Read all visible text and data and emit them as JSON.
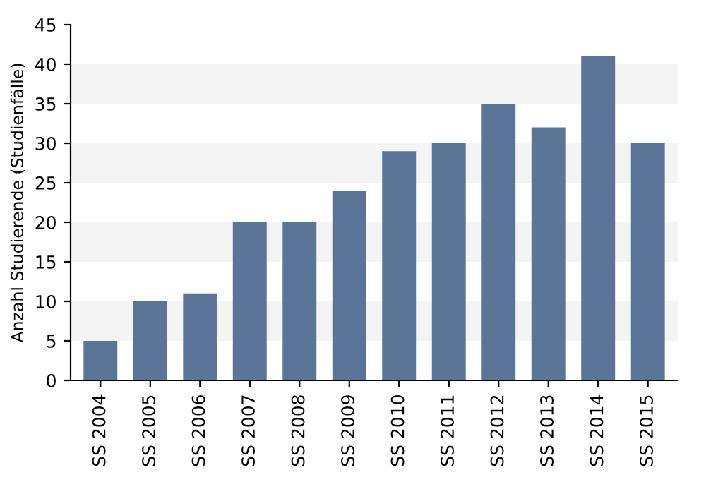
{
  "chart_data": {
    "type": "bar",
    "ylabel": "Anzahl Studierende (Studienfälle)",
    "categories": [
      "SS 2004",
      "SS 2005",
      "SS 2006",
      "SS 2007",
      "SS 2008",
      "SS 2009",
      "SS 2010",
      "SS 2011",
      "SS 2012",
      "SS 2013",
      "SS 2014",
      "SS 2015"
    ],
    "values": [
      5,
      10,
      11,
      20,
      20,
      24,
      29,
      30,
      35,
      32,
      41,
      30
    ],
    "color": "#5a7598",
    "ylim": [
      0,
      45
    ],
    "yticks": [
      0,
      5,
      10,
      15,
      20,
      25,
      30,
      35,
      40,
      45
    ],
    "bands": [
      {
        "axis": "y",
        "from": 5,
        "to": 10,
        "color": "#f4f4f4"
      },
      {
        "axis": "y",
        "from": 15,
        "to": 20,
        "color": "#f4f4f4"
      },
      {
        "axis": "y",
        "from": 25,
        "to": 30,
        "color": "#f4f4f4"
      },
      {
        "axis": "y",
        "from": 35,
        "to": 40,
        "color": "#f4f4f4"
      }
    ]
  }
}
